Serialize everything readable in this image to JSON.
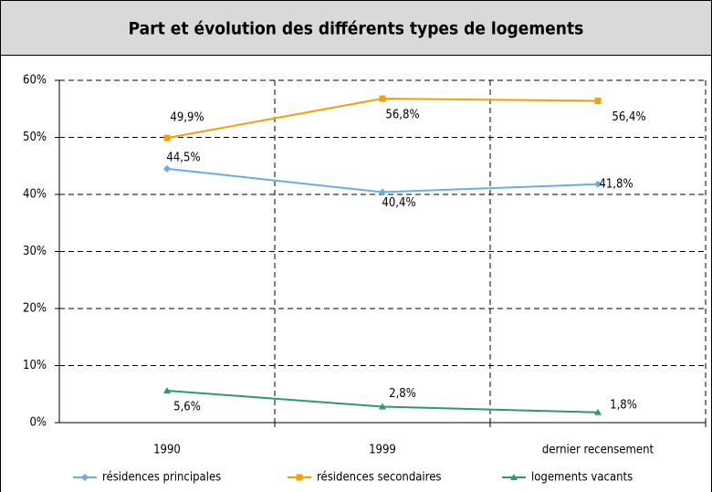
{
  "chart_data": {
    "type": "line",
    "title": "Part et évolution des différents types de logements",
    "categories": [
      "1990",
      "1999",
      "dernier recensement"
    ],
    "series": [
      {
        "name": "résidences principales",
        "color": "#6aaee0",
        "marker": "diamond",
        "values": [
          44.5,
          40.4,
          41.8
        ],
        "value_labels": [
          "44,5%",
          "40,4%",
          "41,8%"
        ]
      },
      {
        "name": "résidences secondaires",
        "color": "#f5a000",
        "marker": "square",
        "values": [
          49.9,
          56.8,
          56.4
        ],
        "value_labels": [
          "49,9%",
          "56,8%",
          "56,4%"
        ]
      },
      {
        "name": "logements vacants",
        "color": "#2e9a68",
        "marker": "triangle",
        "values": [
          5.6,
          2.8,
          1.8
        ],
        "value_labels": [
          "5,6%",
          "2,8%",
          "1,8%"
        ]
      }
    ],
    "ylim": [
      0,
      60
    ],
    "yticks": [
      {
        "value": 0,
        "label": "0%"
      },
      {
        "value": 10,
        "label": "10%"
      },
      {
        "value": 20,
        "label": "20%"
      },
      {
        "value": 30,
        "label": "30%"
      },
      {
        "value": 40,
        "label": "40%"
      },
      {
        "value": 50,
        "label": "50%"
      },
      {
        "value": 60,
        "label": "60%"
      }
    ],
    "grid": true,
    "legend": "bottom"
  }
}
